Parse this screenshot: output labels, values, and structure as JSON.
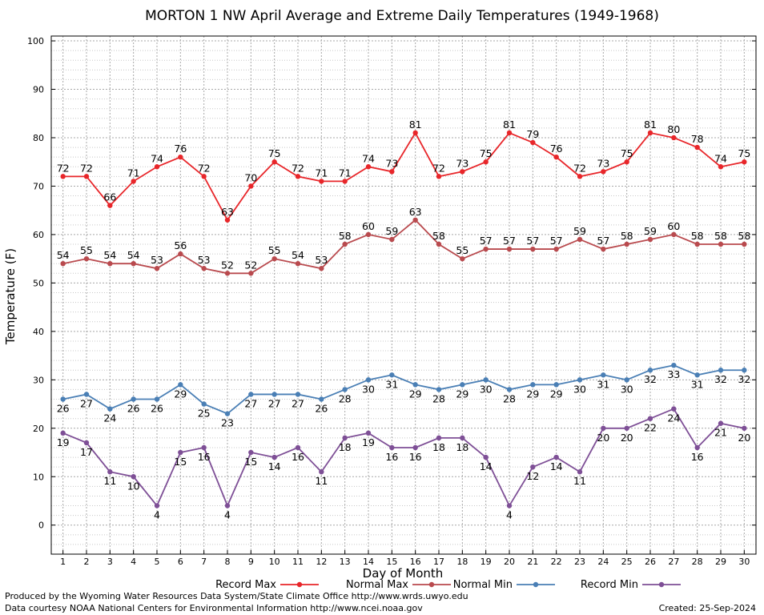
{
  "chart_data": {
    "type": "line",
    "title": "MORTON 1 NW April Average and Extreme Daily Temperatures (1949-1968)",
    "xlabel": "Day of Month",
    "ylabel": "Temperature (F)",
    "xlim": [
      0.5,
      30.5
    ],
    "ylim": [
      -6,
      101
    ],
    "yticks": [
      0,
      10,
      20,
      30,
      40,
      50,
      60,
      70,
      80,
      90,
      100
    ],
    "x": [
      1,
      2,
      3,
      4,
      5,
      6,
      7,
      8,
      9,
      10,
      11,
      12,
      13,
      14,
      15,
      16,
      17,
      18,
      19,
      20,
      21,
      22,
      23,
      24,
      25,
      26,
      27,
      28,
      29,
      30
    ],
    "grid": true,
    "legend_position": "bottom",
    "series": [
      {
        "name": "Record Max",
        "color": "#e8262a",
        "label_position": "above",
        "values": [
          72,
          72,
          66,
          71,
          74,
          76,
          72,
          63,
          70,
          75,
          72,
          71,
          71,
          74,
          73,
          81,
          72,
          73,
          75,
          81,
          79,
          76,
          72,
          73,
          75,
          81,
          80,
          78,
          74,
          75
        ]
      },
      {
        "name": "Normal Max",
        "color": "#b94a4e",
        "label_position": "above",
        "values": [
          54,
          55,
          54,
          54,
          53,
          56,
          53,
          52,
          52,
          55,
          54,
          53,
          58,
          60,
          59,
          63,
          58,
          55,
          57,
          57,
          57,
          57,
          59,
          57,
          58,
          59,
          60,
          58,
          58,
          58
        ]
      },
      {
        "name": "Normal Min",
        "color": "#4a7fb5",
        "label_position": "below",
        "values": [
          26,
          27,
          24,
          26,
          26,
          29,
          25,
          23,
          27,
          27,
          27,
          26,
          28,
          30,
          31,
          29,
          28,
          29,
          30,
          28,
          29,
          29,
          30,
          31,
          30,
          32,
          33,
          31,
          32,
          32
        ]
      },
      {
        "name": "Record Min",
        "color": "#7e4f96",
        "label_position": "below",
        "values": [
          19,
          17,
          11,
          10,
          4,
          15,
          16,
          4,
          15,
          14,
          16,
          11,
          18,
          19,
          16,
          16,
          18,
          18,
          14,
          4,
          12,
          14,
          11,
          20,
          20,
          22,
          24,
          16,
          21,
          20
        ]
      }
    ]
  },
  "footer": {
    "produced_by": "Produced by the Wyoming Water Resources Data System/State Climate Office http://www.wrds.uwyo.edu",
    "data_courtesy": "Data courtesy NOAA National Centers for Environmental Information http://www.ncei.noaa.gov",
    "created": "Created:  25-Sep-2024"
  }
}
